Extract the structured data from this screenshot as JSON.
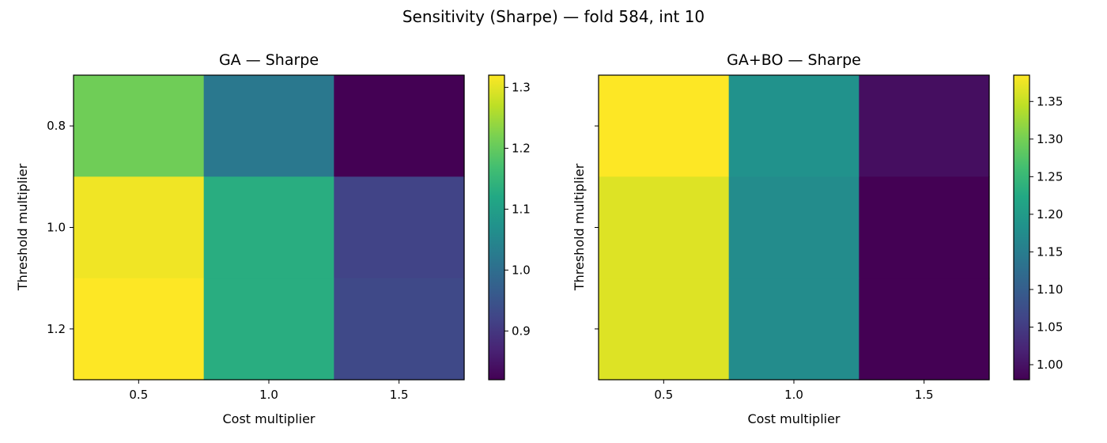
{
  "figure": {
    "suptitle": "Sensitivity (Sharpe) — fold 584, int 10"
  },
  "chart_data": [
    {
      "type": "heatmap",
      "title": "GA — Sharpe",
      "xlabel": "Cost multiplier",
      "ylabel": "Threshold multiplier",
      "x_categories": [
        "0.5",
        "1.0",
        "1.5"
      ],
      "y_categories": [
        "0.8",
        "1.0",
        "1.2"
      ],
      "show_y_tick_labels": true,
      "values": [
        [
          1.21,
          1.02,
          0.82
        ],
        [
          1.31,
          1.13,
          0.92
        ],
        [
          1.32,
          1.13,
          0.93
        ]
      ],
      "colorbar": {
        "colormap": "viridis",
        "vmin": 0.82,
        "vmax": 1.32,
        "ticks": [
          "0.9",
          "1.0",
          "1.1",
          "1.2",
          "1.3"
        ]
      }
    },
    {
      "type": "heatmap",
      "title": "GA+BO — Sharpe",
      "xlabel": "Cost multiplier",
      "ylabel": "Threshold multiplier",
      "x_categories": [
        "0.5",
        "1.0",
        "1.5"
      ],
      "y_categories": [
        "0.8",
        "1.0",
        "1.2"
      ],
      "show_y_tick_labels": false,
      "values": [
        [
          1.385,
          1.185,
          0.995
        ],
        [
          1.365,
          1.175,
          0.98
        ],
        [
          1.365,
          1.175,
          0.98
        ]
      ],
      "colorbar": {
        "colormap": "viridis",
        "vmin": 0.98,
        "vmax": 1.385,
        "ticks": [
          "1.00",
          "1.05",
          "1.10",
          "1.15",
          "1.20",
          "1.25",
          "1.30",
          "1.35"
        ]
      }
    }
  ]
}
